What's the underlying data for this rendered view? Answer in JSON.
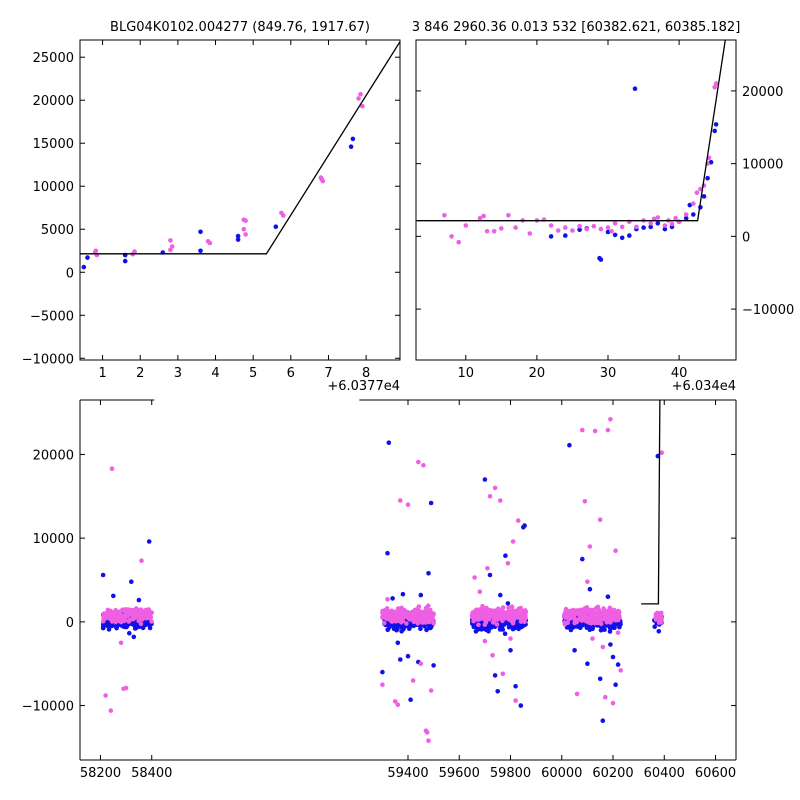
{
  "colors": {
    "series_a": "#1010e8",
    "series_b": "#ee5fe3",
    "model": "#000000"
  },
  "chart_data": [
    {
      "type": "scatter",
      "title": "BLG04K0102.004277 (849.76, 1917.67)",
      "offset_label": "+6.0377e4",
      "xlim": [
        0.4,
        8.9
      ],
      "ylim": [
        -10200,
        27000
      ],
      "xticks": [
        1,
        2,
        3,
        4,
        5,
        6,
        7,
        8
      ],
      "yticks": [
        -10000,
        -5000,
        0,
        5000,
        10000,
        15000,
        20000,
        25000
      ],
      "ytick_side": "left",
      "series": [
        {
          "color_key": "series_a",
          "points": [
            [
              0.5,
              600
            ],
            [
              0.6,
              1700
            ],
            [
              1.6,
              1300
            ],
            [
              1.6,
              2000
            ],
            [
              2.6,
              2300
            ],
            [
              3.6,
              2500
            ],
            [
              3.6,
              4700
            ],
            [
              4.6,
              4200
            ],
            [
              4.6,
              3800
            ],
            [
              5.6,
              5300
            ],
            [
              7.6,
              14600
            ],
            [
              7.65,
              15500
            ]
          ]
        },
        {
          "color_key": "series_b",
          "points": [
            [
              0.8,
              2300
            ],
            [
              0.85,
              2000
            ],
            [
              0.82,
              2500
            ],
            [
              1.8,
              2100
            ],
            [
              1.85,
              2400
            ],
            [
              2.8,
              2600
            ],
            [
              2.85,
              3000
            ],
            [
              2.8,
              3700
            ],
            [
              3.8,
              3600
            ],
            [
              3.85,
              3400
            ],
            [
              4.8,
              4400
            ],
            [
              4.75,
              5000
            ],
            [
              4.8,
              6000
            ],
            [
              4.75,
              6100
            ],
            [
              5.75,
              6900
            ],
            [
              5.8,
              6600
            ],
            [
              6.8,
              11000
            ],
            [
              6.85,
              10600
            ],
            [
              6.82,
              10800
            ],
            [
              7.8,
              20200
            ],
            [
              7.85,
              20700
            ],
            [
              7.9,
              19300
            ]
          ]
        }
      ],
      "model_line": [
        [
          0.4,
          2150
        ],
        [
          5.35,
          2150
        ],
        [
          8.9,
          26800
        ]
      ]
    },
    {
      "type": "scatter",
      "title": "3 846 2960.36 0.013 532 [60382.621, 60385.182]",
      "offset_label": "+6.034e4",
      "xlim": [
        3,
        48
      ],
      "ylim": [
        -17000,
        27000
      ],
      "xticks": [
        10,
        20,
        30,
        40
      ],
      "yticks": [
        -10000,
        0,
        10000,
        20000
      ],
      "ytick_side": "right",
      "series": [
        {
          "color_key": "series_a",
          "points": [
            [
              22,
              0
            ],
            [
              24,
              100
            ],
            [
              26,
              900
            ],
            [
              27,
              1100
            ],
            [
              28.8,
              -3000
            ],
            [
              29,
              -3200
            ],
            [
              30,
              600
            ],
            [
              31,
              200
            ],
            [
              32,
              -200
            ],
            [
              33,
              100
            ],
            [
              33.8,
              20300
            ],
            [
              34,
              1000
            ],
            [
              35,
              1200
            ],
            [
              36,
              1300
            ],
            [
              37,
              1800
            ],
            [
              38,
              1000
            ],
            [
              39,
              1300
            ],
            [
              40,
              2000
            ],
            [
              41,
              2500
            ],
            [
              41.5,
              4300
            ],
            [
              42,
              3000
            ],
            [
              43,
              4000
            ],
            [
              43.5,
              5500
            ],
            [
              44,
              8000
            ],
            [
              44.5,
              10200
            ],
            [
              45,
              14500
            ],
            [
              45.2,
              15400
            ]
          ]
        },
        {
          "color_key": "series_b",
          "points": [
            [
              7,
              2900
            ],
            [
              8,
              0
            ],
            [
              9,
              -800
            ],
            [
              10,
              1500
            ],
            [
              12,
              2500
            ],
            [
              12.5,
              2800
            ],
            [
              13,
              700
            ],
            [
              14,
              700
            ],
            [
              15,
              1100
            ],
            [
              16,
              2900
            ],
            [
              17,
              1200
            ],
            [
              18,
              2200
            ],
            [
              19,
              400
            ],
            [
              20,
              2200
            ],
            [
              21,
              2300
            ],
            [
              22,
              1500
            ],
            [
              23,
              800
            ],
            [
              24,
              1200
            ],
            [
              25,
              800
            ],
            [
              26,
              1400
            ],
            [
              27,
              1000
            ],
            [
              28,
              1400
            ],
            [
              29,
              1000
            ],
            [
              30,
              1200
            ],
            [
              30.5,
              700
            ],
            [
              31,
              1800
            ],
            [
              32,
              1300
            ],
            [
              33,
              2000
            ],
            [
              34,
              1300
            ],
            [
              35,
              2200
            ],
            [
              36,
              1800
            ],
            [
              36.5,
              2400
            ],
            [
              37,
              2600
            ],
            [
              38,
              1500
            ],
            [
              38.5,
              2200
            ],
            [
              39,
              1700
            ],
            [
              39.5,
              2500
            ],
            [
              40,
              2000
            ],
            [
              41,
              3000
            ],
            [
              42,
              4500
            ],
            [
              42.5,
              6000
            ],
            [
              43,
              6500
            ],
            [
              43.5,
              7000
            ],
            [
              44,
              10000
            ],
            [
              44.2,
              10800
            ],
            [
              45,
              20500
            ],
            [
              45.2,
              21000
            ]
          ]
        }
      ],
      "model_line": [
        [
          3,
          2150
        ],
        [
          42.6,
          2150
        ],
        [
          46.5,
          27000
        ]
      ]
    },
    {
      "type": "scatter",
      "title": "",
      "xlim": [
        58120,
        60680
      ],
      "ylim": [
        -16500,
        26500
      ],
      "xticks": [
        58200,
        58400,
        59400,
        59600,
        59800,
        60000,
        60200,
        60400,
        60600
      ],
      "yticks": [
        -10000,
        0,
        10000,
        20000
      ],
      "ytick_side": "left",
      "season_gap": [
        58410,
        59210
      ],
      "seasons": [
        {
          "x_min": 58210,
          "x_max": 58400,
          "n_core": 170
        },
        {
          "x_min": 59300,
          "x_max": 59500,
          "n_core": 220
        },
        {
          "x_min": 59650,
          "x_max": 59860,
          "n_core": 220
        },
        {
          "x_min": 60010,
          "x_max": 60230,
          "n_core": 230
        },
        {
          "x_min": 60360,
          "x_max": 60390,
          "n_core": 14
        }
      ],
      "outliers_a": [
        [
          58210,
          5600
        ],
        [
          58250,
          3100
        ],
        [
          58320,
          4800
        ],
        [
          58350,
          2600
        ],
        [
          58390,
          9600
        ],
        [
          58330,
          -1800
        ],
        [
          59300,
          -6000
        ],
        [
          59320,
          8200
        ],
        [
          59325,
          21400
        ],
        [
          59340,
          2800
        ],
        [
          59360,
          -2500
        ],
        [
          59370,
          -4500
        ],
        [
          59380,
          3300
        ],
        [
          59400,
          -4100
        ],
        [
          59410,
          -9300
        ],
        [
          59440,
          -4800
        ],
        [
          59450,
          3200
        ],
        [
          59480,
          5800
        ],
        [
          59490,
          14200
        ],
        [
          59500,
          -5200
        ],
        [
          59700,
          17000
        ],
        [
          59720,
          5600
        ],
        [
          59740,
          -6400
        ],
        [
          59750,
          -8300
        ],
        [
          59760,
          3200
        ],
        [
          59780,
          7900
        ],
        [
          59790,
          2200
        ],
        [
          59800,
          -3400
        ],
        [
          59820,
          -7700
        ],
        [
          59840,
          -10000
        ],
        [
          59850,
          11300
        ],
        [
          59855,
          11500
        ],
        [
          60030,
          21100
        ],
        [
          60050,
          -3400
        ],
        [
          60080,
          7500
        ],
        [
          60100,
          -5000
        ],
        [
          60110,
          3900
        ],
        [
          60150,
          -6800
        ],
        [
          60160,
          -11800
        ],
        [
          60180,
          3000
        ],
        [
          60190,
          -2700
        ],
        [
          60200,
          -4200
        ],
        [
          60210,
          -7500
        ],
        [
          60220,
          -5100
        ],
        [
          60375,
          19800
        ]
      ],
      "outliers_b": [
        [
          58220,
          -8800
        ],
        [
          58240,
          -10600
        ],
        [
          58245,
          18300
        ],
        [
          58280,
          -2500
        ],
        [
          58290,
          -8000
        ],
        [
          58300,
          -7900
        ],
        [
          58360,
          7300
        ],
        [
          59300,
          -7500
        ],
        [
          59320,
          2700
        ],
        [
          59350,
          -9500
        ],
        [
          59360,
          -9900
        ],
        [
          59370,
          14500
        ],
        [
          59400,
          14000
        ],
        [
          59420,
          -7000
        ],
        [
          59440,
          19100
        ],
        [
          59450,
          -5000
        ],
        [
          59460,
          18700
        ],
        [
          59470,
          -13000
        ],
        [
          59475,
          -13200
        ],
        [
          59480,
          -14200
        ],
        [
          59490,
          -8200
        ],
        [
          59660,
          5300
        ],
        [
          59680,
          3600
        ],
        [
          59700,
          -2300
        ],
        [
          59710,
          6400
        ],
        [
          59720,
          15000
        ],
        [
          59730,
          -4000
        ],
        [
          59740,
          16000
        ],
        [
          59760,
          14500
        ],
        [
          59770,
          -6200
        ],
        [
          59790,
          7000
        ],
        [
          59800,
          -2000
        ],
        [
          59810,
          9600
        ],
        [
          59820,
          -9400
        ],
        [
          59830,
          12100
        ],
        [
          60060,
          -8600
        ],
        [
          60080,
          22900
        ],
        [
          60090,
          14400
        ],
        [
          60100,
          4800
        ],
        [
          60110,
          9000
        ],
        [
          60120,
          -2000
        ],
        [
          60130,
          22800
        ],
        [
          60150,
          12200
        ],
        [
          60160,
          -3000
        ],
        [
          60170,
          -9000
        ],
        [
          60180,
          22900
        ],
        [
          60190,
          24200
        ],
        [
          60200,
          -9700
        ],
        [
          60210,
          8500
        ],
        [
          60220,
          -1300
        ],
        [
          60230,
          -5800
        ],
        [
          60390,
          20200
        ]
      ],
      "model_line": [
        [
          60310,
          2150
        ],
        [
          60377,
          2150
        ],
        [
          60383,
          27000
        ]
      ]
    }
  ]
}
